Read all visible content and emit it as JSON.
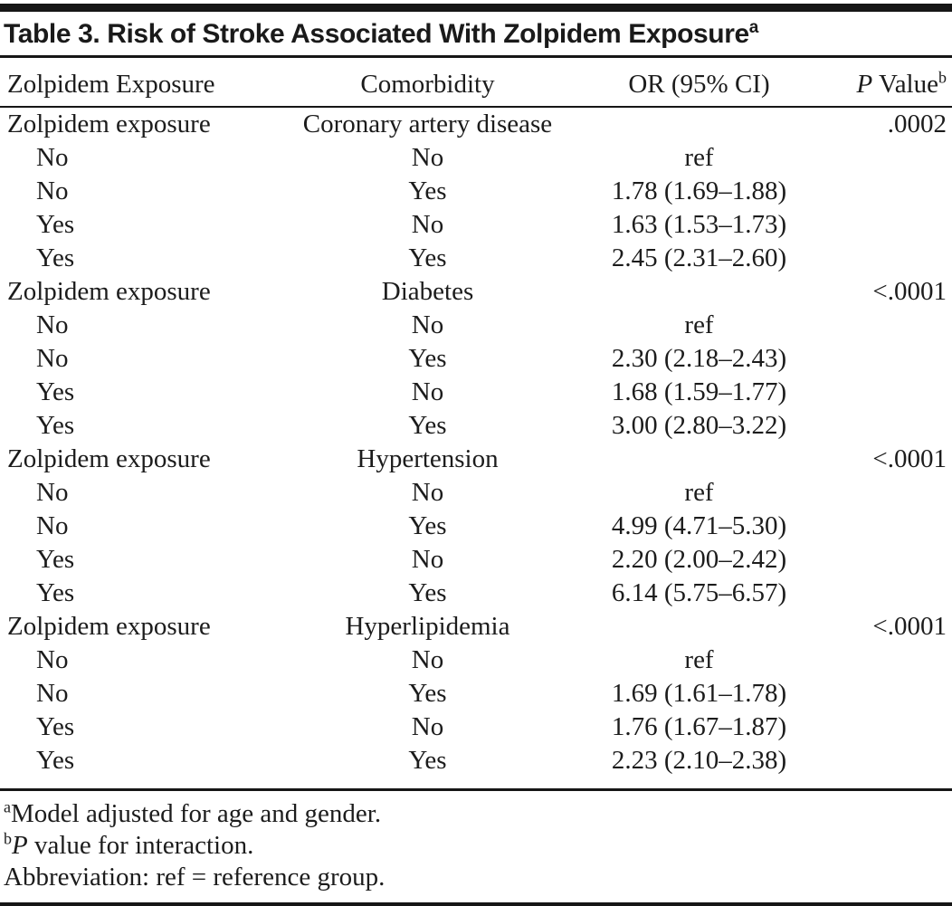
{
  "colors": {
    "ink": "#1c1c1c",
    "rule": "#161616",
    "background": "#ffffff"
  },
  "table": {
    "title": "Table 3. Risk of Stroke Associated With Zolpidem Exposure",
    "title_sup": "a",
    "columns": [
      {
        "italic": "",
        "label": "Zolpidem Exposure",
        "sup": ""
      },
      {
        "italic": "",
        "label": "Comorbidity",
        "sup": ""
      },
      {
        "italic": "",
        "label": "OR (95% CI)",
        "sup": ""
      },
      {
        "italic": "P",
        "label": " Value",
        "sup": "b"
      }
    ],
    "groups": [
      {
        "exposure_label": "Zolpidem exposure",
        "comorbidity": "Coronary artery disease",
        "p_value": ".0002",
        "rows": [
          {
            "exposure": "No",
            "comorbidity": "No",
            "or_ci": "ref"
          },
          {
            "exposure": "No",
            "comorbidity": "Yes",
            "or_ci": "1.78 (1.69–1.88)"
          },
          {
            "exposure": "Yes",
            "comorbidity": "No",
            "or_ci": "1.63 (1.53–1.73)"
          },
          {
            "exposure": "Yes",
            "comorbidity": "Yes",
            "or_ci": "2.45 (2.31–2.60)"
          }
        ]
      },
      {
        "exposure_label": "Zolpidem exposure",
        "comorbidity": "Diabetes",
        "p_value": "<.0001",
        "rows": [
          {
            "exposure": "No",
            "comorbidity": "No",
            "or_ci": "ref"
          },
          {
            "exposure": "No",
            "comorbidity": "Yes",
            "or_ci": "2.30 (2.18–2.43)"
          },
          {
            "exposure": "Yes",
            "comorbidity": "No",
            "or_ci": "1.68 (1.59–1.77)"
          },
          {
            "exposure": "Yes",
            "comorbidity": "Yes",
            "or_ci": "3.00 (2.80–3.22)"
          }
        ]
      },
      {
        "exposure_label": "Zolpidem exposure",
        "comorbidity": "Hypertension",
        "p_value": "<.0001",
        "rows": [
          {
            "exposure": "No",
            "comorbidity": "No",
            "or_ci": "ref"
          },
          {
            "exposure": "No",
            "comorbidity": "Yes",
            "or_ci": "4.99 (4.71–5.30)"
          },
          {
            "exposure": "Yes",
            "comorbidity": "No",
            "or_ci": "2.20 (2.00–2.42)"
          },
          {
            "exposure": "Yes",
            "comorbidity": "Yes",
            "or_ci": "6.14 (5.75–6.57)"
          }
        ]
      },
      {
        "exposure_label": "Zolpidem exposure",
        "comorbidity": "Hyperlipidemia",
        "p_value": "<.0001",
        "rows": [
          {
            "exposure": "No",
            "comorbidity": "No",
            "or_ci": "ref"
          },
          {
            "exposure": "No",
            "comorbidity": "Yes",
            "or_ci": "1.69 (1.61–1.78)"
          },
          {
            "exposure": "Yes",
            "comorbidity": "No",
            "or_ci": "1.76 (1.67–1.87)"
          },
          {
            "exposure": "Yes",
            "comorbidity": "Yes",
            "or_ci": "2.23 (2.10–2.38)"
          }
        ]
      }
    ],
    "footnotes": [
      {
        "sup": "a",
        "italic": "",
        "text": "Model adjusted for age and gender."
      },
      {
        "sup": "b",
        "italic": "P",
        "text": " value for interaction."
      },
      {
        "sup": "",
        "italic": "",
        "text": "Abbreviation: ref = reference group."
      }
    ]
  }
}
